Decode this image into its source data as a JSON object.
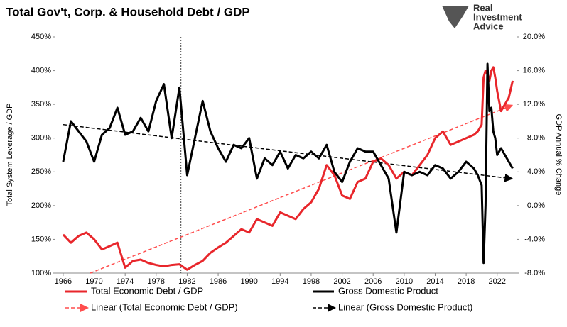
{
  "logo_lines": [
    "Real",
    "Investment",
    "Advice"
  ],
  "chart_data": {
    "type": "line",
    "title": "Total Gov't, Corp. & Household Debt / GDP",
    "y_label": "Total System Leverage / GDP",
    "y2_label": "GDP Annual % Change",
    "x": [
      1966,
      1967,
      1968,
      1969,
      1970,
      1971,
      1972,
      1973,
      1974,
      1975,
      1976,
      1977,
      1978,
      1979,
      1980,
      1981,
      1982,
      1983,
      1984,
      1985,
      1986,
      1987,
      1988,
      1989,
      1990,
      1991,
      1992,
      1993,
      1994,
      1995,
      1996,
      1997,
      1998,
      1999,
      2000,
      2001,
      2002,
      2003,
      2004,
      2005,
      2006,
      2007,
      2008,
      2009,
      2010,
      2011,
      2012,
      2013,
      2014,
      2015,
      2016,
      2017,
      2018,
      2019,
      2019.5,
      2020,
      2020.25,
      2020.5,
      2020.75,
      2021,
      2021.25,
      2021.5,
      2021.75,
      2022,
      2022.5,
      2023,
      2023.5,
      2024
    ],
    "series": [
      {
        "name": "Total Economic Debt / GDP",
        "color": "#e8262b",
        "axis": "y",
        "values": [
          157,
          145,
          155,
          160,
          150,
          135,
          140,
          145,
          108,
          118,
          120,
          115,
          112,
          110,
          112,
          113,
          105,
          112,
          118,
          130,
          138,
          145,
          155,
          165,
          160,
          180,
          175,
          170,
          190,
          185,
          180,
          195,
          205,
          225,
          260,
          245,
          215,
          210,
          235,
          240,
          265,
          270,
          260,
          240,
          250,
          245,
          260,
          275,
          300,
          310,
          290,
          295,
          300,
          305,
          310,
          320,
          390,
          400,
          395,
          385,
          400,
          405,
          390,
          370,
          340,
          350,
          360,
          385
        ]
      },
      {
        "name": "Gross Domestic Product",
        "color": "#000000",
        "axis": "y2",
        "values": [
          5.2,
          10.0,
          8.8,
          7.6,
          5.2,
          8.4,
          9.2,
          11.6,
          8.4,
          8.8,
          10.4,
          8.8,
          12.4,
          14.4,
          8.0,
          14.0,
          3.6,
          8.0,
          12.4,
          8.8,
          6.8,
          5.2,
          7.2,
          6.8,
          8.0,
          3.2,
          5.6,
          4.8,
          6.4,
          4.4,
          6.0,
          5.6,
          6.4,
          5.6,
          7.2,
          4.0,
          2.8,
          5.2,
          6.8,
          6.4,
          6.4,
          4.8,
          3.2,
          -3.2,
          4.0,
          3.6,
          4.0,
          3.6,
          4.8,
          4.4,
          3.2,
          4.0,
          5.2,
          4.4,
          3.6,
          2.4,
          -6.8,
          0.0,
          16.8,
          11.2,
          11.6,
          8.8,
          8.0,
          6.0,
          6.8,
          6.0,
          5.2,
          4.4
        ]
      }
    ],
    "trends": [
      {
        "name": "Linear (Total Economic Debt / GDP)",
        "color": "#ff4d4d",
        "axis": "y",
        "x": [
          1969.5,
          2023.8
        ],
        "values": [
          100,
          348
        ]
      },
      {
        "name": "Linear (Gross Domestic Product)",
        "color": "#000000",
        "axis": "y2",
        "x": [
          1966,
          2023.8
        ],
        "values": [
          9.6,
          3.2
        ]
      }
    ],
    "vline_x": 1981.2,
    "xlim": [
      1965,
      2024.5
    ],
    "xticks": [
      1966,
      1970,
      1974,
      1978,
      1982,
      1986,
      1990,
      1994,
      1998,
      2002,
      2006,
      2010,
      2014,
      2018,
      2022
    ],
    "ylim": [
      100,
      450
    ],
    "yticks": [
      {
        "value": 100,
        "label": "100%"
      },
      {
        "value": 150,
        "label": "150%"
      },
      {
        "value": 200,
        "label": "200%"
      },
      {
        "value": 250,
        "label": "250%"
      },
      {
        "value": 300,
        "label": "300%"
      },
      {
        "value": 350,
        "label": "350%"
      },
      {
        "value": 400,
        "label": "400%"
      },
      {
        "value": 450,
        "label": "450%"
      }
    ],
    "y2lim": [
      -8,
      20
    ],
    "y2ticks": [
      {
        "value": -8,
        "label": "-8.0%"
      },
      {
        "value": -4,
        "label": "-4.0%"
      },
      {
        "value": 0,
        "label": "0.0%"
      },
      {
        "value": 4,
        "label": "4.0%"
      },
      {
        "value": 8,
        "label": "8.0%"
      },
      {
        "value": 12,
        "label": "12.0%"
      },
      {
        "value": 16,
        "label": "16.0%"
      },
      {
        "value": 20,
        "label": "20.0%"
      }
    ],
    "grid": false
  }
}
